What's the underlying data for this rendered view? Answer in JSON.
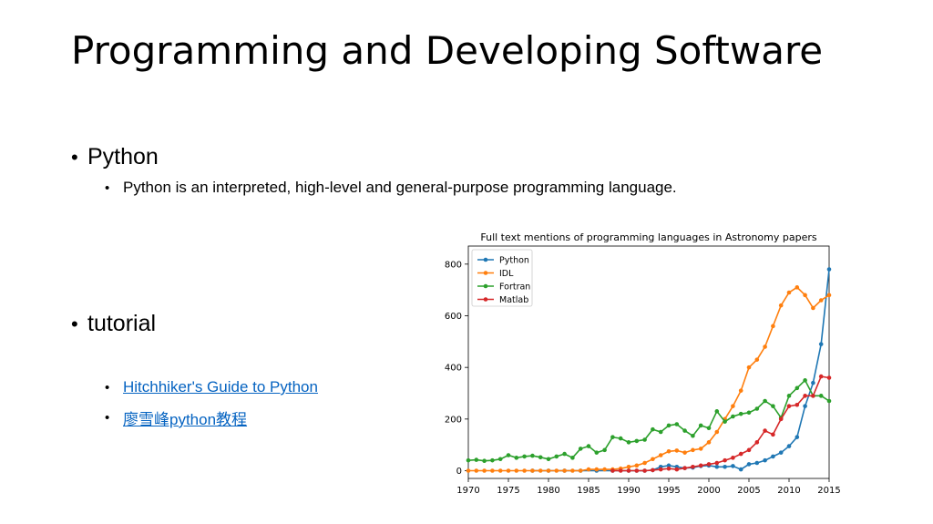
{
  "slide": {
    "title": "Programming and Developing Software",
    "bullets": [
      {
        "text": "Python",
        "sub": [
          "Python is an interpreted, high-level and general-purpose programming language."
        ]
      },
      {
        "text": "tutorial",
        "links": [
          "Hitchhiker's Guide to Python",
          "廖雪峰python教程"
        ]
      }
    ],
    "link_color": "#0563c1"
  },
  "chart_data": {
    "type": "line",
    "title": "Full text mentions of programming languages in Astronomy papers",
    "xlabel": "",
    "ylabel": "",
    "xlim": [
      1970,
      2015
    ],
    "ylim": [
      -30,
      870
    ],
    "xticks": [
      1970,
      1975,
      1980,
      1985,
      1990,
      1995,
      2000,
      2005,
      2010,
      2015
    ],
    "yticks": [
      0,
      200,
      400,
      600,
      800
    ],
    "legend_position": "top-left",
    "grid": false,
    "series": [
      {
        "name": "Python",
        "color": "#1f77b4",
        "x": [
          1978,
          1980,
          1982,
          1984,
          1986,
          1988,
          1990,
          1991,
          1992,
          1993,
          1994,
          1995,
          1996,
          1997,
          1998,
          1999,
          2000,
          2001,
          2002,
          2003,
          2004,
          2005,
          2006,
          2007,
          2008,
          2009,
          2010,
          2011,
          2012,
          2013,
          2014,
          2015
        ],
        "y": [
          0,
          0,
          0,
          0,
          0,
          0,
          0,
          0,
          0,
          2,
          15,
          20,
          15,
          10,
          12,
          18,
          20,
          15,
          15,
          18,
          5,
          25,
          30,
          40,
          55,
          70,
          95,
          130,
          250,
          340,
          490,
          780
        ]
      },
      {
        "name": "IDL",
        "color": "#ff7f0e",
        "x": [
          1970,
          1971,
          1972,
          1973,
          1974,
          1975,
          1976,
          1977,
          1978,
          1979,
          1980,
          1981,
          1982,
          1983,
          1984,
          1985,
          1986,
          1987,
          1988,
          1989,
          1990,
          1991,
          1992,
          1993,
          1994,
          1995,
          1996,
          1997,
          1998,
          1999,
          2000,
          2001,
          2002,
          2003,
          2004,
          2005,
          2006,
          2007,
          2008,
          2009,
          2010,
          2011,
          2012,
          2013,
          2014,
          2015
        ],
        "y": [
          0,
          0,
          0,
          0,
          0,
          0,
          0,
          0,
          0,
          0,
          0,
          0,
          0,
          0,
          0,
          5,
          5,
          5,
          5,
          8,
          15,
          20,
          30,
          45,
          60,
          75,
          78,
          70,
          80,
          85,
          110,
          150,
          200,
          250,
          310,
          400,
          430,
          480,
          560,
          640,
          690,
          710,
          680,
          630,
          660,
          680
        ]
      },
      {
        "name": "Fortran",
        "color": "#2ca02c",
        "x": [
          1970,
          1971,
          1972,
          1973,
          1974,
          1975,
          1976,
          1977,
          1978,
          1979,
          1980,
          1981,
          1982,
          1983,
          1984,
          1985,
          1986,
          1987,
          1988,
          1989,
          1990,
          1991,
          1992,
          1993,
          1994,
          1995,
          1996,
          1997,
          1998,
          1999,
          2000,
          2001,
          2002,
          2003,
          2004,
          2005,
          2006,
          2007,
          2008,
          2009,
          2010,
          2011,
          2012,
          2013,
          2014,
          2015
        ],
        "y": [
          40,
          42,
          38,
          40,
          45,
          60,
          50,
          55,
          58,
          52,
          45,
          55,
          65,
          50,
          85,
          95,
          70,
          80,
          130,
          125,
          110,
          115,
          120,
          160,
          150,
          175,
          180,
          155,
          135,
          175,
          165,
          230,
          190,
          210,
          220,
          225,
          240,
          270,
          250,
          205,
          290,
          320,
          350,
          290,
          290,
          270
        ]
      },
      {
        "name": "Matlab",
        "color": "#d62728",
        "x": [
          1988,
          1989,
          1990,
          1991,
          1992,
          1993,
          1994,
          1995,
          1996,
          1997,
          1998,
          1999,
          2000,
          2001,
          2002,
          2003,
          2004,
          2005,
          2006,
          2007,
          2008,
          2009,
          2010,
          2011,
          2012,
          2013,
          2014,
          2015
        ],
        "y": [
          0,
          0,
          0,
          0,
          0,
          2,
          5,
          8,
          5,
          10,
          15,
          20,
          25,
          30,
          40,
          50,
          65,
          80,
          110,
          155,
          140,
          200,
          250,
          255,
          290,
          290,
          365,
          360
        ]
      }
    ]
  }
}
